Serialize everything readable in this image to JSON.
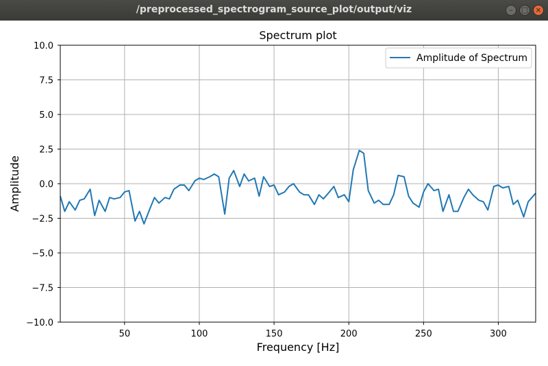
{
  "window": {
    "title": "/preprocessed_spectrogram_source_plot/output/viz",
    "buttons": {
      "minimize": "–",
      "maximize": "□",
      "close": "×"
    }
  },
  "colors": {
    "line": "#1f77b4",
    "grid": "#b0b0b0",
    "titlebar": "#3c3b37",
    "close": "#e2693a"
  },
  "chart_data": {
    "type": "line",
    "title": "Spectrum plot",
    "xlabel": "Frequency [Hz]",
    "ylabel": "Amplitude",
    "xlim": [
      7,
      325
    ],
    "ylim": [
      -10,
      10
    ],
    "xticks": [
      50,
      100,
      150,
      200,
      250,
      300
    ],
    "xtick_labels": [
      "50",
      "100",
      "150",
      "200",
      "250",
      "300"
    ],
    "yticks": [
      -10,
      -7.5,
      -5,
      -2.5,
      0,
      2.5,
      5,
      7.5,
      10
    ],
    "ytick_labels": [
      "−10.0",
      "−7.5",
      "−5.0",
      "−2.5",
      "0.0",
      "2.5",
      "5.0",
      "7.5",
      "10.0"
    ],
    "grid": true,
    "legend": {
      "location": "upper right",
      "entries": [
        "Amplitude of Spectrum"
      ]
    },
    "series": [
      {
        "name": "Amplitude of Spectrum",
        "x": [
          7,
          10,
          13,
          17,
          20,
          23,
          27,
          30,
          33,
          37,
          40,
          43,
          47,
          50,
          53,
          57,
          60,
          63,
          67,
          70,
          73,
          77,
          80,
          83,
          87,
          90,
          93,
          97,
          100,
          103,
          107,
          110,
          113,
          117,
          120,
          123,
          127,
          130,
          133,
          137,
          140,
          143,
          147,
          150,
          153,
          157,
          160,
          163,
          167,
          170,
          173,
          177,
          180,
          183,
          187,
          190,
          193,
          197,
          200,
          203,
          207,
          210,
          213,
          217,
          220,
          223,
          227,
          230,
          233,
          237,
          240,
          243,
          247,
          250,
          253,
          257,
          260,
          263,
          267,
          270,
          273,
          277,
          280,
          283,
          287,
          290,
          293,
          297,
          300,
          303,
          307,
          310,
          313,
          317,
          320,
          325
        ],
        "values": [
          -0.9,
          -2.0,
          -1.3,
          -1.9,
          -1.2,
          -1.1,
          -0.4,
          -2.3,
          -1.2,
          -2.0,
          -1.0,
          -1.1,
          -1.0,
          -0.6,
          -0.5,
          -2.7,
          -2.0,
          -2.9,
          -1.8,
          -1.0,
          -1.4,
          -1.0,
          -1.1,
          -0.4,
          -0.1,
          -0.1,
          -0.5,
          0.2,
          0.4,
          0.3,
          0.5,
          0.7,
          0.5,
          -2.2,
          0.4,
          0.95,
          -0.2,
          0.7,
          0.2,
          0.4,
          -0.9,
          0.5,
          -0.2,
          -0.1,
          -0.8,
          -0.6,
          -0.2,
          0.0,
          -0.6,
          -0.8,
          -0.8,
          -1.5,
          -0.8,
          -1.1,
          -0.6,
          -0.2,
          -1.0,
          -0.8,
          -1.3,
          1.0,
          2.4,
          2.2,
          -0.5,
          -1.4,
          -1.2,
          -1.5,
          -1.5,
          -0.8,
          0.6,
          0.5,
          -0.9,
          -1.4,
          -1.7,
          -0.6,
          0.0,
          -0.5,
          -0.4,
          -2.0,
          -0.8,
          -2.0,
          -2.0,
          -1.0,
          -0.4,
          -0.8,
          -1.2,
          -1.3,
          -1.9,
          -0.2,
          -0.1,
          -0.3,
          -0.2,
          -1.5,
          -1.2,
          -2.4,
          -1.3,
          -0.7
        ]
      }
    ]
  }
}
